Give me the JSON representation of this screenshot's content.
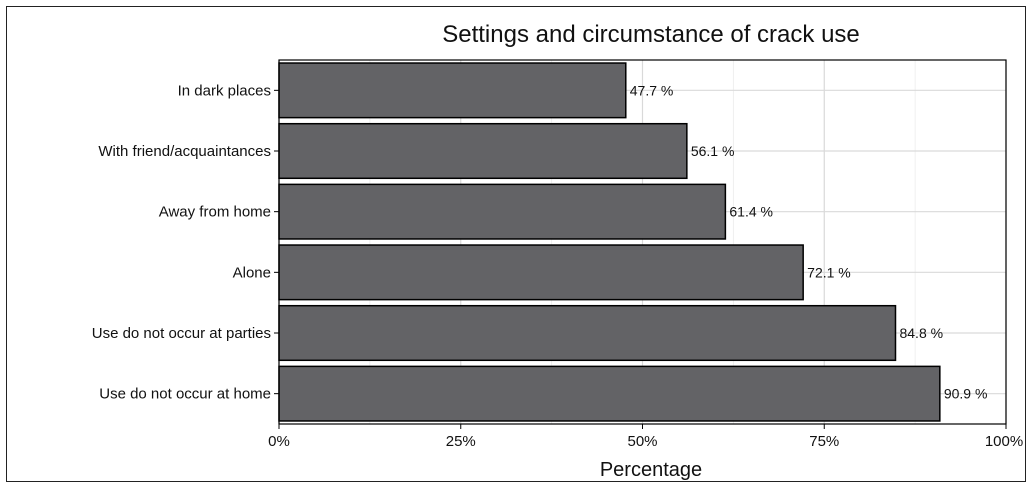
{
  "chart_data": {
    "type": "bar",
    "orientation": "horizontal",
    "title": "Settings and circumstance of crack use",
    "xlabel": "Percentage",
    "ylabel": "",
    "categories": [
      "In dark places",
      "With friend/acquaintances",
      "Away from home",
      "Alone",
      "Use do not occur at parties",
      "Use do not occur at home"
    ],
    "values": [
      47.7,
      56.1,
      61.4,
      72.1,
      84.8,
      90.9
    ],
    "data_labels": [
      "47.7 %",
      "56.1 %",
      "61.4 %",
      "72.1 %",
      "84.8 %",
      "90.9 %"
    ],
    "xlim": [
      0,
      100
    ],
    "xticks": [
      0,
      25,
      50,
      75,
      100
    ],
    "xtick_labels": [
      "0%",
      "25%",
      "50%",
      "75%",
      "100%"
    ],
    "grid": true,
    "legend": "none",
    "bar_color": "#636366",
    "bar_edge_color": "#000000",
    "grid_color": "#d9d9d9"
  }
}
